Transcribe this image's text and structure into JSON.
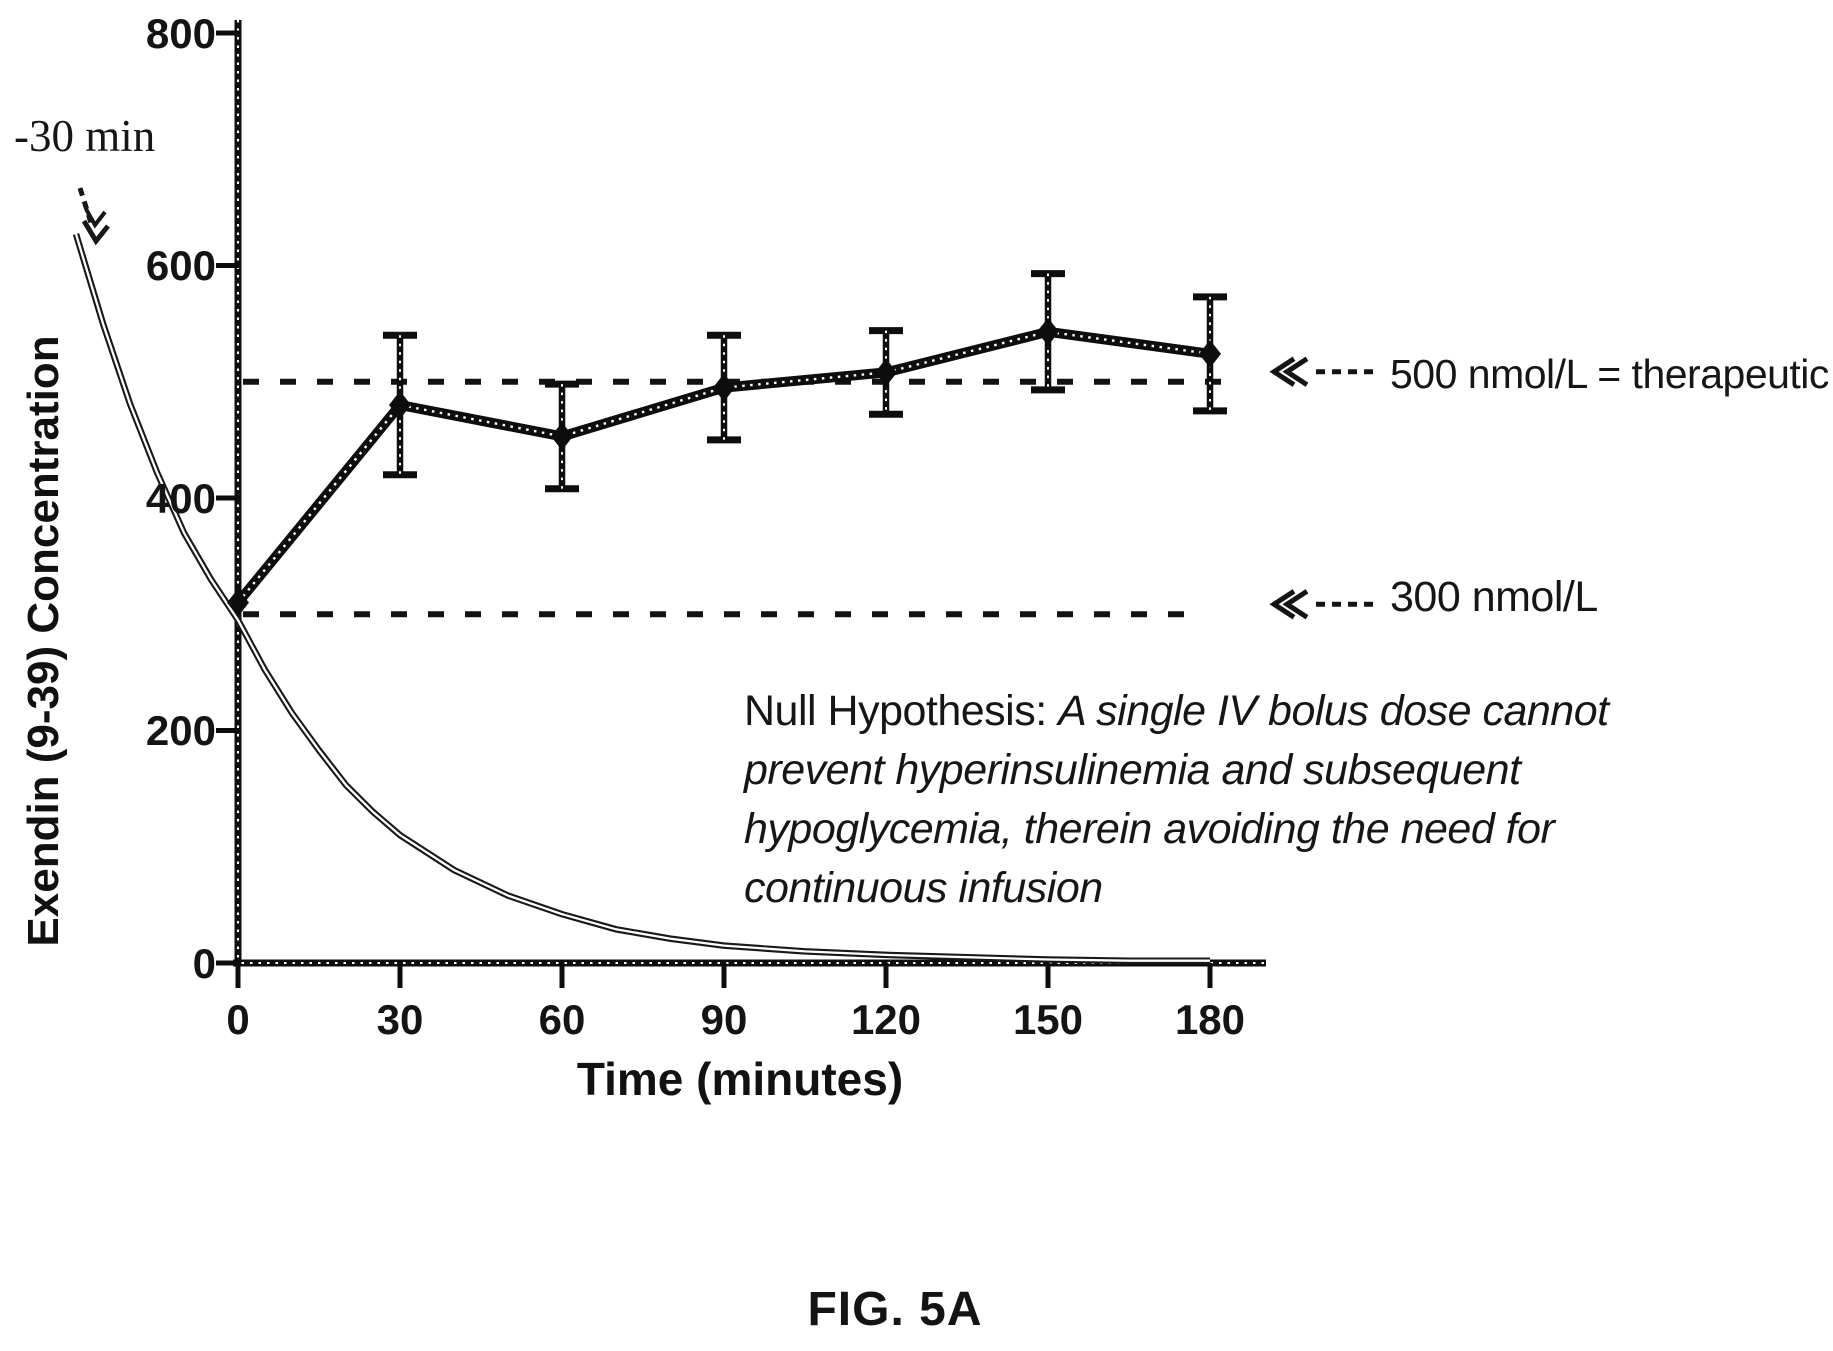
{
  "figure": {
    "caption": "FIG. 5A"
  },
  "chart_data": {
    "type": "line",
    "title": "",
    "xlabel": "Time (minutes)",
    "ylabel": "Exendin (9-39) Concentration",
    "x_ticks": [
      "0",
      "30",
      "60",
      "90",
      "120",
      "150",
      "180"
    ],
    "y_ticks": [
      "800",
      "600",
      "400",
      "200",
      "0"
    ],
    "xlim": [
      -30,
      190
    ],
    "ylim": [
      0,
      800
    ],
    "grid": false,
    "legend": "none",
    "series": [
      {
        "name": "Exendin (9-39) IV bolus",
        "marker": "diamond",
        "x": [
          0,
          30,
          60,
          90,
          120,
          150,
          180
        ],
        "values": [
          310,
          480,
          453,
          495,
          508,
          543,
          524
        ],
        "error": [
          0,
          60,
          45,
          45,
          36,
          50,
          49
        ]
      },
      {
        "name": "Exponential decay curve starting at -30 min",
        "marker": "none",
        "points": [
          [
            -30,
            627
          ],
          [
            -25,
            550
          ],
          [
            -20,
            481
          ],
          [
            -15,
            422
          ],
          [
            -10,
            370
          ],
          [
            -5,
            330
          ],
          [
            0,
            295
          ],
          [
            5,
            252
          ],
          [
            10,
            215
          ],
          [
            15,
            183
          ],
          [
            20,
            153
          ],
          [
            25,
            130
          ],
          [
            30,
            110
          ],
          [
            40,
            80
          ],
          [
            50,
            58
          ],
          [
            60,
            42
          ],
          [
            70,
            29
          ],
          [
            80,
            21
          ],
          [
            90,
            15
          ],
          [
            105,
            10
          ],
          [
            120,
            7
          ],
          [
            135,
            5
          ],
          [
            150,
            3
          ],
          [
            165,
            2
          ],
          [
            180,
            2
          ]
        ]
      }
    ],
    "reference_lines": [
      {
        "value": 500,
        "label": "500 nmol/L = therapeutic"
      },
      {
        "value": 300,
        "label": "300 nmol/L"
      }
    ],
    "annotations": {
      "decay_start": "-30 min",
      "null_hypothesis_lead": "Null Hypothesis:",
      "null_hypothesis_lines": [
        "A single IV bolus dose cannot",
        "prevent hyperinsulinemia and subsequent",
        "hypoglycemia, therein  avoiding the need for",
        "continuous infusion"
      ]
    }
  }
}
